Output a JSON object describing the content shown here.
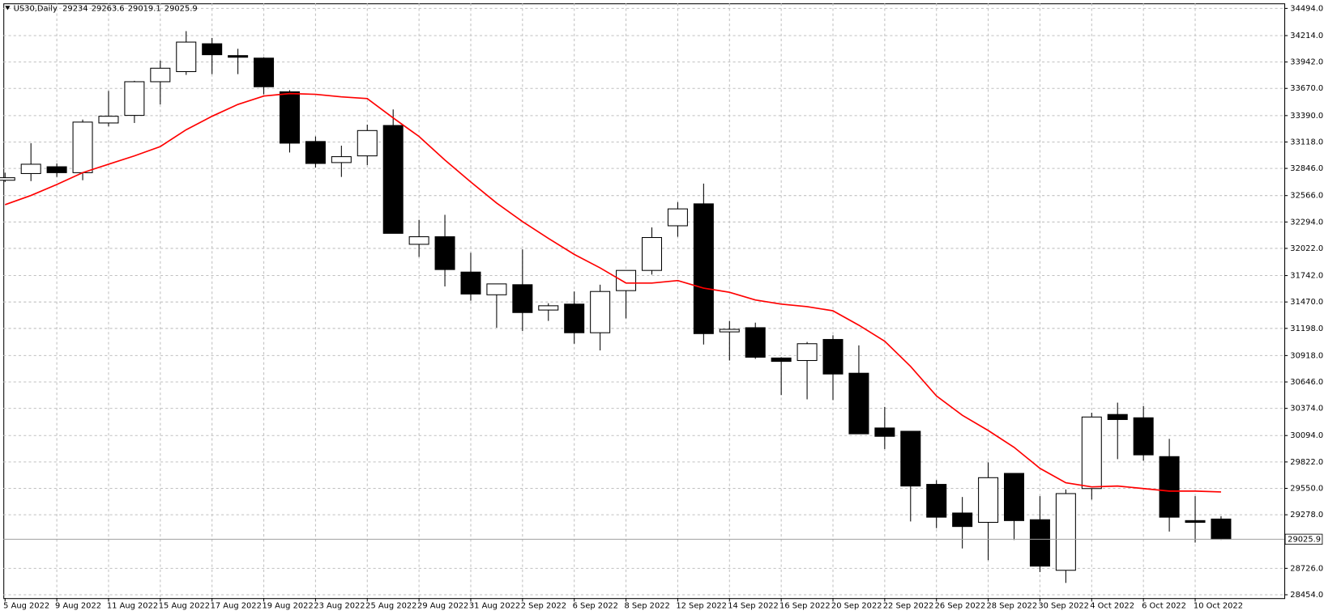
{
  "chart_data": {
    "type": "candlestick",
    "title": "US30,Daily",
    "categories": [
      "5 Aug 2022",
      null,
      "9 Aug 2022",
      null,
      "11 Aug 2022",
      null,
      "15 Aug 2022",
      null,
      "17 Aug 2022",
      null,
      "19 Aug 2022",
      null,
      "23 Aug 2022",
      null,
      "25 Aug 2022",
      null,
      "29 Aug 2022",
      null,
      "31 Aug 2022",
      null,
      "2 Sep 2022",
      null,
      "6 Sep 2022",
      null,
      "8 Sep 2022",
      null,
      "12 Sep 2022",
      null,
      "14 Sep 2022",
      null,
      "16 Sep 2022",
      null,
      "20 Sep 2022",
      null,
      "22 Sep 2022",
      null,
      "26 Sep 2022",
      null,
      "28 Sep 2022",
      null,
      "30 Sep 2022",
      null,
      "4 Oct 2022",
      null,
      "6 Oct 2022",
      null,
      "10 Oct 2022",
      null
    ],
    "series": [
      {
        "up_color": "#ffffff",
        "down_color": "#000000",
        "open": [
          32724,
          32793,
          32863,
          32802,
          33314,
          33392,
          33739,
          33843,
          34130,
          34008,
          33982,
          33635,
          33123,
          32906,
          32975,
          33288,
          32064,
          32142,
          31778,
          31544,
          31648,
          31387,
          31448,
          31153,
          31587,
          31795,
          32255,
          32481,
          31162,
          31205,
          30893,
          30867,
          31084,
          30736,
          30172,
          30138,
          29591,
          29296,
          29200,
          29704,
          29227,
          28706,
          29548,
          30311,
          30277,
          29877,
          29218,
          29234.0
        ],
        "high": [
          32802,
          33106,
          32897,
          33349,
          33644,
          33748,
          33956,
          34260,
          34190,
          34078,
          33991,
          33652,
          33175,
          33080,
          33297,
          33453,
          32316,
          32368,
          31977,
          31656,
          32012,
          31457,
          31578,
          31648,
          31795,
          32238,
          32498,
          32689,
          31275,
          31257,
          30901,
          31058,
          31127,
          31023,
          30389,
          30138,
          29634,
          29461,
          29817,
          29704,
          29470,
          29539,
          30329,
          30433,
          30398,
          30060,
          29470,
          29263.6
        ],
        "low": [
          32706,
          32715,
          32758,
          32724,
          33279,
          33314,
          33505,
          33809,
          33817,
          33817,
          33609,
          33010,
          32854,
          32758,
          32880,
          32177,
          31934,
          31630,
          31483,
          31205,
          31170,
          31275,
          31040,
          30971,
          31301,
          31752,
          32142,
          31032,
          30867,
          30884,
          30511,
          30467,
          30459,
          30112,
          29955,
          29209,
          29140,
          28931,
          28810,
          29018,
          28688,
          28576,
          29435,
          29851,
          29834,
          29105,
          28992,
          29019.1
        ],
        "close": [
          32750,
          32889,
          32802,
          33323,
          33383,
          33739,
          33878,
          34147,
          34017,
          33991,
          33687,
          33106,
          32897,
          32967,
          33236,
          32177,
          32142,
          31804,
          31552,
          31656,
          31361,
          31431,
          31153,
          31578,
          31795,
          32134,
          32429,
          31144,
          31188,
          30901,
          30858,
          31040,
          30728,
          30112,
          30086,
          29574,
          29253,
          29157,
          29660,
          29218,
          28749,
          29496,
          30285,
          30259,
          29895,
          29253,
          29200,
          29025.9
        ]
      }
    ],
    "ma": {
      "color": "#ff0000",
      "values": [
        32472,
        32567,
        32680,
        32802,
        32889,
        32975,
        33071,
        33244,
        33383,
        33505,
        33591,
        33617,
        33609,
        33583,
        33565,
        33366,
        33175,
        32932,
        32706,
        32489,
        32298,
        32125,
        31960,
        31821,
        31665,
        31665,
        31691,
        31613,
        31570,
        31491,
        31448,
        31422,
        31379,
        31231,
        31066,
        30806,
        30502,
        30303,
        30146,
        29973,
        29756,
        29608,
        29565,
        29574,
        29548,
        29522,
        29522,
        29513
      ]
    },
    "ylim": [
      28419,
      34546
    ],
    "yticks": [
      {
        "value": 34494,
        "label": "34494.0"
      },
      {
        "value": 34214,
        "label": "34214.0"
      },
      {
        "value": 33942,
        "label": "33942.0"
      },
      {
        "value": 33670,
        "label": "33670.0"
      },
      {
        "value": 33390,
        "label": "33390.0"
      },
      {
        "value": 33118,
        "label": "33118.0"
      },
      {
        "value": 32846,
        "label": "32846.0"
      },
      {
        "value": 32566,
        "label": "32566.0"
      },
      {
        "value": 32294,
        "label": "32294.0"
      },
      {
        "value": 32022,
        "label": "32022.0"
      },
      {
        "value": 31742,
        "label": "31742.0"
      },
      {
        "value": 31470,
        "label": "31470.0"
      },
      {
        "value": 31198,
        "label": "31198.0"
      },
      {
        "value": 30918,
        "label": "30918.0"
      },
      {
        "value": 30646,
        "label": "30646.0"
      },
      {
        "value": 30374,
        "label": "30374.0"
      },
      {
        "value": 30094,
        "label": "30094.0"
      },
      {
        "value": 29822,
        "label": "29822.0"
      },
      {
        "value": 29550,
        "label": "29550.0"
      },
      {
        "value": 29278,
        "label": "29278.0"
      },
      {
        "value": 28726,
        "label": "28726.0"
      },
      {
        "value": 28454,
        "label": "28454.0"
      }
    ],
    "grid": true
  }
}
